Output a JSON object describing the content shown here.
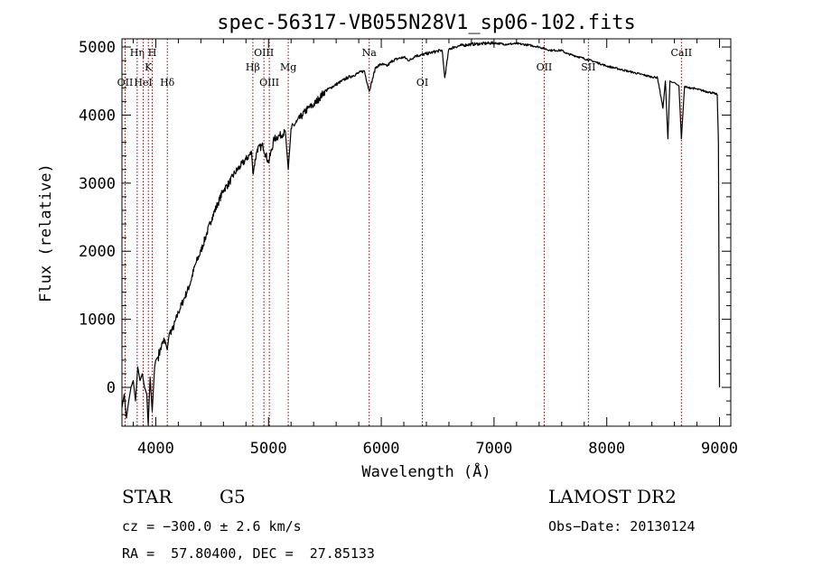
{
  "chart_data": {
    "type": "line",
    "title": "spec-56317-VB055N28V1_sp06-102.fits",
    "xlabel": "Wavelength (Å)",
    "ylabel": "Flux (relative)",
    "xlim": [
      3700,
      9100
    ],
    "ylim": [
      -570,
      5120
    ],
    "xticks": [
      4000,
      5000,
      6000,
      7000,
      8000,
      9000
    ],
    "yticks": [
      0,
      1000,
      2000,
      3000,
      4000,
      5000
    ],
    "grid": false,
    "line_color": "#000000",
    "marker_color": "#8b0000",
    "spectrum": {
      "x": [
        3700,
        3720,
        3740,
        3760,
        3780,
        3800,
        3820,
        3840,
        3860,
        3880,
        3900,
        3920,
        3933,
        3950,
        3968,
        3990,
        4000,
        4020,
        4050,
        4080,
        4102,
        4120,
        4150,
        4200,
        4250,
        4300,
        4350,
        4400,
        4450,
        4500,
        4550,
        4600,
        4650,
        4700,
        4750,
        4800,
        4850,
        4861,
        4900,
        4950,
        5000,
        5050,
        5100,
        5150,
        5175,
        5200,
        5250,
        5300,
        5350,
        5400,
        5450,
        5500,
        5550,
        5600,
        5650,
        5700,
        5750,
        5800,
        5850,
        5893,
        5950,
        6000,
        6050,
        6100,
        6150,
        6200,
        6250,
        6300,
        6350,
        6400,
        6450,
        6500,
        6540,
        6563,
        6600,
        6650,
        6700,
        6800,
        6900,
        7000,
        7100,
        7200,
        7300,
        7400,
        7500,
        7600,
        7650,
        7700,
        7800,
        7900,
        8000,
        8100,
        8200,
        8300,
        8400,
        8450,
        8498,
        8520,
        8542,
        8560,
        8580,
        8600,
        8620,
        8640,
        8662,
        8690,
        8720,
        8750,
        8800,
        8850,
        8900,
        8950,
        8980,
        8990,
        9000
      ],
      "y": [
        -300,
        -100,
        -450,
        -200,
        0,
        100,
        -200,
        300,
        100,
        200,
        0,
        -100,
        -550,
        150,
        -350,
        300,
        400,
        450,
        600,
        700,
        550,
        800,
        850,
        1100,
        1300,
        1500,
        1800,
        2000,
        2250,
        2500,
        2700,
        2900,
        3000,
        3150,
        3250,
        3350,
        3450,
        3150,
        3500,
        3550,
        3300,
        3650,
        3700,
        3750,
        3200,
        3800,
        3900,
        4000,
        4100,
        4150,
        4250,
        4350,
        4400,
        4450,
        4500,
        4550,
        4580,
        4620,
        4650,
        4350,
        4700,
        4750,
        4720,
        4800,
        4830,
        4850,
        4800,
        4870,
        4880,
        4900,
        4920,
        4940,
        4950,
        4550,
        4970,
        5000,
        5020,
        5040,
        5050,
        5060,
        5040,
        5050,
        5030,
        5000,
        4950,
        4950,
        4900,
        4880,
        4830,
        4780,
        4720,
        4680,
        4640,
        4600,
        4560,
        4550,
        4100,
        4500,
        3650,
        4500,
        4480,
        4480,
        4450,
        4430,
        3650,
        4420,
        4400,
        4400,
        4380,
        4360,
        4340,
        4320,
        4300,
        3600,
        0
      ]
    },
    "line_markers": [
      {
        "wavelength": 3728,
        "label": "OII",
        "tier": 2
      },
      {
        "wavelength": 3835,
        "label": "Hη",
        "tier": 0
      },
      {
        "wavelength": 3889,
        "label": "HeI",
        "tier": 2
      },
      {
        "wavelength": 3934,
        "label": "K",
        "tier": 1
      },
      {
        "wavelength": 3969,
        "label": "H",
        "tier": 0
      },
      {
        "wavelength": 4102,
        "label": "Hδ",
        "tier": 2
      },
      {
        "wavelength": 4861,
        "label": "Hβ",
        "tier": 1
      },
      {
        "wavelength": 4959,
        "label": "OIII",
        "tier": 0
      },
      {
        "wavelength": 5007,
        "label": "OIII",
        "tier": 2
      },
      {
        "wavelength": 5175,
        "label": "Mg",
        "tier": 1
      },
      {
        "wavelength": 5893,
        "label": "Na",
        "tier": 0
      },
      {
        "wavelength": 6364,
        "label": "OI",
        "tier": 2
      },
      {
        "wavelength": 7445,
        "label": "OII",
        "tier": 1
      },
      {
        "wavelength": 7837,
        "label": "SII",
        "tier": 1
      },
      {
        "wavelength": 8662,
        "label": "CaII",
        "tier": 0
      }
    ]
  },
  "info": {
    "class_label": "STAR",
    "subclass": "G5",
    "survey": "LAMOST DR2",
    "redshift": "cz = −300.0 ± 2.6 km/s",
    "obs_date": "Obs−Date: 20130124",
    "coords": "RA =  57.80400, DEC =  27.85133"
  }
}
